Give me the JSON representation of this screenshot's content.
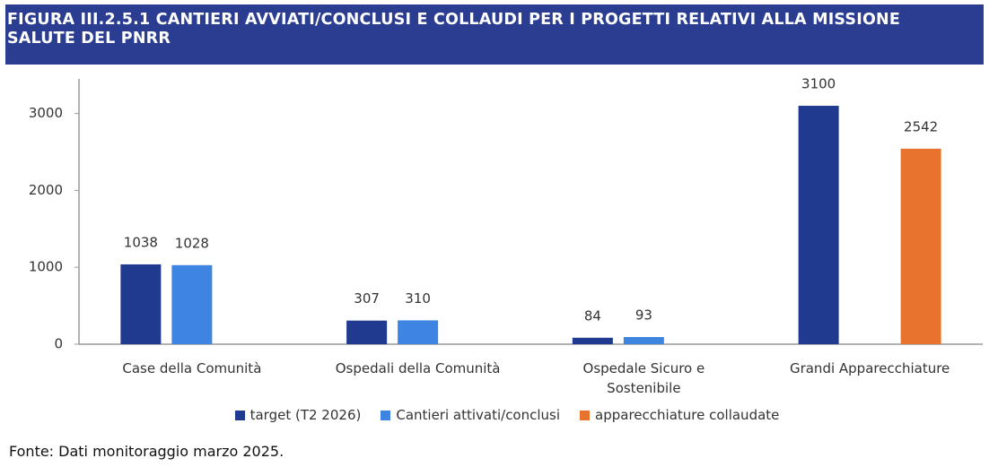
{
  "chart_data": {
    "type": "bar",
    "title": "FIGURA III.2.5.1 CANTIERI AVVIATI/CONCLUSI E COLLAUDI PER I PROGETTI RELATIVI ALLA MISSIONE SALUTE DEL PNRR",
    "categories": [
      "Case della Comunità",
      "Ospedali della Comunità",
      "Ospedale Sicuro e Sostenibile",
      "Grandi Apparecchiature"
    ],
    "series": [
      {
        "name": "target (T2 2026)",
        "color": "#1f3a8f",
        "values": [
          1038,
          307,
          84,
          3100
        ]
      },
      {
        "name": "Cantieri attivati/conclusi",
        "color": "#3d85e0",
        "values": [
          1028,
          310,
          93,
          null
        ]
      },
      {
        "name": "apparecchiature collaudate",
        "color": "#e8732f",
        "values": [
          null,
          null,
          null,
          2542
        ]
      }
    ],
    "ylim": [
      0,
      3450
    ],
    "yticks": [
      0,
      1000,
      2000,
      3000
    ],
    "grid": false,
    "legend": "bottom",
    "source": "Fonte: Dati monitoraggio marzo 2025."
  }
}
